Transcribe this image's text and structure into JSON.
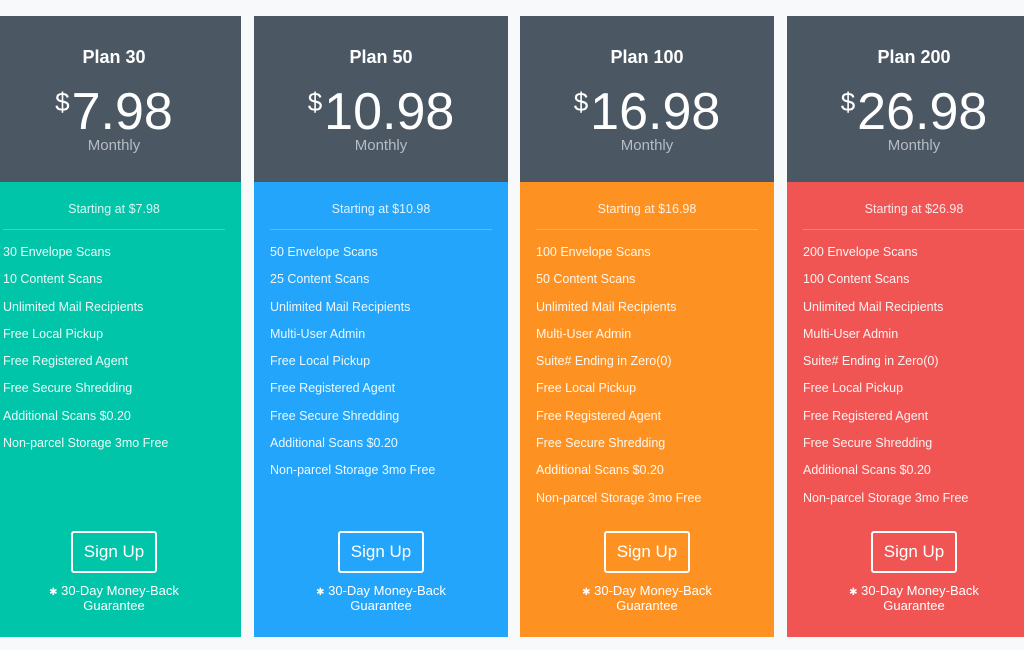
{
  "plans": [
    {
      "name": "Plan 30",
      "currency": "$",
      "price": "7.98",
      "period": "Monthly",
      "color": "#00c5a8",
      "starting": "Starting at $7.98",
      "features": [
        "30 Envelope Scans",
        "10 Content Scans",
        "Unlimited Mail Recipients",
        "Free Local Pickup",
        "Free Registered Agent",
        "Free Secure Shredding",
        "Additional Scans $0.20",
        "Non-parcel Storage 3mo Free"
      ],
      "button": "Sign Up",
      "guarantee_icon": "✱",
      "guarantee": "30-Day Money-Back",
      "guarantee2": "Guarantee"
    },
    {
      "name": "Plan 50",
      "currency": "$",
      "price": "10.98",
      "period": "Monthly",
      "color": "#22a5fb",
      "starting": "Starting at $10.98",
      "features": [
        "50 Envelope Scans",
        "25 Content Scans",
        "Unlimited Mail Recipients",
        "Multi-User Admin",
        "Free Local Pickup",
        "Free Registered Agent",
        "Free Secure Shredding",
        "Additional Scans $0.20",
        "Non-parcel Storage 3mo Free"
      ],
      "button": "Sign Up",
      "guarantee_icon": "✱",
      "guarantee": "30-Day Money-Back",
      "guarantee2": "Guarantee"
    },
    {
      "name": "Plan 100",
      "currency": "$",
      "price": "16.98",
      "period": "Monthly",
      "color": "#fd9223",
      "starting": "Starting at $16.98",
      "features": [
        "100 Envelope Scans",
        "50 Content Scans",
        "Unlimited Mail Recipients",
        "Multi-User Admin",
        "Suite# Ending in Zero(0)",
        "Free Local Pickup",
        "Free Registered Agent",
        "Free Secure Shredding",
        "Additional Scans $0.20",
        "Non-parcel Storage 3mo Free"
      ],
      "button": "Sign Up",
      "guarantee_icon": "✱",
      "guarantee": "30-Day Money-Back",
      "guarantee2": "Guarantee"
    },
    {
      "name": "Plan 200",
      "currency": "$",
      "price": "26.98",
      "period": "Monthly",
      "color": "#f05554",
      "starting": "Starting at $26.98",
      "features": [
        "200 Envelope Scans",
        "100 Content Scans",
        "Unlimited Mail Recipients",
        "Multi-User Admin",
        "Suite# Ending in Zero(0)",
        "Free Local Pickup",
        "Free Registered Agent",
        "Free Secure Shredding",
        "Additional Scans $0.20",
        "Non-parcel Storage 3mo Free"
      ],
      "button": "Sign Up",
      "guarantee_icon": "✱",
      "guarantee": "30-Day Money-Back",
      "guarantee2": "Guarantee"
    }
  ]
}
